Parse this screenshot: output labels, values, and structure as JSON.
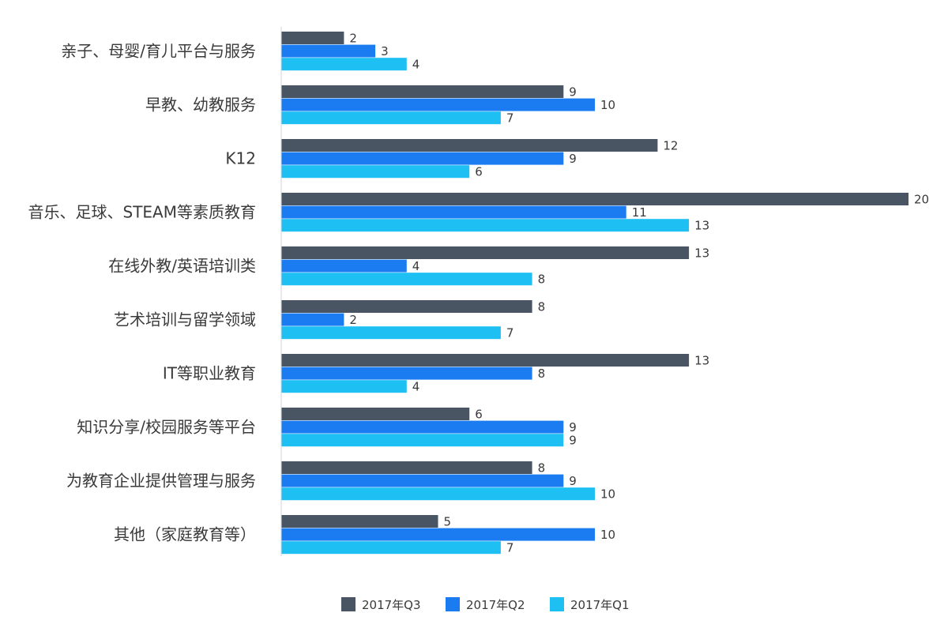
{
  "chart_data": {
    "type": "bar",
    "orientation": "horizontal",
    "categories": [
      "亲子、母婴/育儿平台与服务",
      "早教、幼教服务",
      "K12",
      "音乐、足球、STEAM等素质教育",
      "在线外教/英语培训类",
      "艺术培训与留学领域",
      "IT等职业教育",
      "知识分享/校园服务等平台",
      "为教育企业提供管理与服务",
      "其他（家庭教育等）"
    ],
    "series": [
      {
        "name": "2017年Q3",
        "color": "#4a5563",
        "values": [
          2,
          9,
          12,
          20,
          13,
          8,
          13,
          6,
          8,
          5
        ]
      },
      {
        "name": "2017年Q2",
        "color": "#1a7cf0",
        "values": [
          3,
          10,
          9,
          11,
          4,
          2,
          8,
          9,
          9,
          10
        ]
      },
      {
        "name": "2017年Q1",
        "color": "#1ec0f4",
        "values": [
          4,
          7,
          6,
          13,
          8,
          7,
          4,
          9,
          10,
          7
        ]
      }
    ],
    "xlim": [
      0,
      20
    ],
    "grid": false,
    "legend_position": "bottom"
  }
}
